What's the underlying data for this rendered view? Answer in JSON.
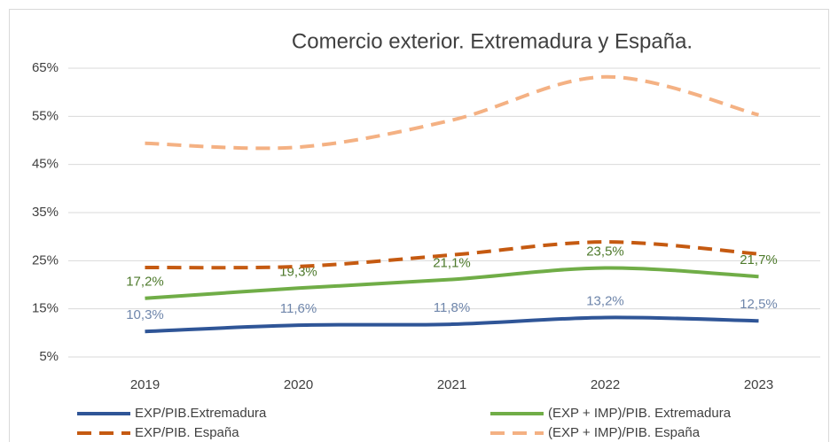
{
  "chart_data": {
    "type": "line",
    "title": "Comercio exterior. Extremadura y España.",
    "categories": [
      "2019",
      "2020",
      "2021",
      "2022",
      "2023"
    ],
    "ylim": [
      5,
      65
    ],
    "yticks": [
      {
        "value": 5,
        "label": "5%"
      },
      {
        "value": 15,
        "label": "15%"
      },
      {
        "value": 25,
        "label": "25%"
      },
      {
        "value": 35,
        "label": "35%"
      },
      {
        "value": 45,
        "label": "45%"
      },
      {
        "value": 55,
        "label": "55%"
      },
      {
        "value": 65,
        "label": "65%"
      }
    ],
    "grid": true,
    "legend": "bottom",
    "series": [
      {
        "name": "EXP/PIB.Extremadura",
        "color": "#2f5597",
        "dashed": false,
        "label_color": "#6f86ab",
        "values": [
          10.3,
          11.6,
          11.8,
          13.2,
          12.5
        ],
        "value_labels": [
          "10,3%",
          "11,6%",
          "11,8%",
          "13,2%",
          "12,5%"
        ]
      },
      {
        "name": "(EXP + IMP)/PIB. Extremadura",
        "color": "#70ad47",
        "dashed": false,
        "label_color": "#4e7a2c",
        "values": [
          17.2,
          19.3,
          21.1,
          23.5,
          21.7
        ],
        "value_labels": [
          "17,2%",
          "19,3%",
          "21,1%",
          "23,5%",
          "21,7%"
        ]
      },
      {
        "name": "EXP/PIB. España",
        "color": "#c55a11",
        "dashed": true,
        "values": [
          23.6,
          23.8,
          26.2,
          28.9,
          26.4
        ]
      },
      {
        "name": "(EXP + IMP)/PIB. España",
        "color": "#f4b183",
        "dashed": true,
        "values": [
          49.4,
          48.6,
          54.2,
          63.2,
          55.3
        ]
      }
    ]
  }
}
